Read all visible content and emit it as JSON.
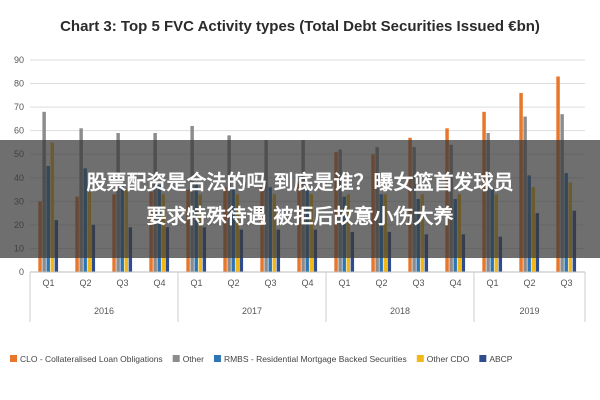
{
  "chart_data": {
    "type": "bar",
    "title": "Chart 3: Top 5 FVC Activity types (Total Debt Securities Issued €bn)",
    "xlabel": "",
    "ylabel": "",
    "ylim": [
      0,
      90
    ],
    "yticks": [
      0,
      10,
      20,
      30,
      40,
      50,
      60,
      70,
      80,
      90
    ],
    "grid": true,
    "legend_placement": "bottom",
    "categories": [
      "Q1",
      "Q2",
      "Q3",
      "Q4",
      "Q1",
      "Q2",
      "Q3",
      "Q4",
      "Q1",
      "Q2",
      "Q3",
      "Q4",
      "Q1",
      "Q2",
      "Q3"
    ],
    "year_groups": [
      {
        "label": "2016",
        "count": 4
      },
      {
        "label": "2017",
        "count": 4
      },
      {
        "label": "2018",
        "count": 4
      },
      {
        "label": "2019",
        "count": 3
      }
    ],
    "series": [
      {
        "name": "CLO - Collateralised Loan Obligations",
        "color": "#e8762b",
        "values": [
          30,
          32,
          33,
          34,
          35,
          36,
          36,
          38,
          51,
          50,
          57,
          61,
          68,
          76,
          83
        ]
      },
      {
        "name": "Other",
        "color": "#8c8c8c",
        "values": [
          68,
          61,
          59,
          59,
          62,
          58,
          56,
          56,
          52,
          53,
          53,
          54,
          59,
          66,
          67
        ]
      },
      {
        "name": "RMBS - Residential Mortgage Backed Securities",
        "color": "#2e75b6",
        "values": [
          45,
          44,
          39,
          37,
          38,
          36,
          36,
          35,
          32,
          33,
          31,
          31,
          36,
          41,
          42
        ]
      },
      {
        "name": "Other CDO",
        "color": "#f2b817",
        "values": [
          55,
          34,
          35,
          33,
          33,
          33,
          33,
          33,
          33,
          33,
          33,
          33,
          33,
          36,
          38
        ]
      },
      {
        "name": "ABCP",
        "color": "#2f4c8c",
        "values": [
          22,
          20,
          19,
          19,
          19,
          18,
          18,
          18,
          17,
          17,
          16,
          16,
          15,
          25,
          26
        ]
      }
    ]
  },
  "overlay": {
    "line1": "股票配资是合法的吗 到底是谁？曝女篮首发球员",
    "line2": "要求特殊待遇 被拒后故意小伤大养"
  }
}
